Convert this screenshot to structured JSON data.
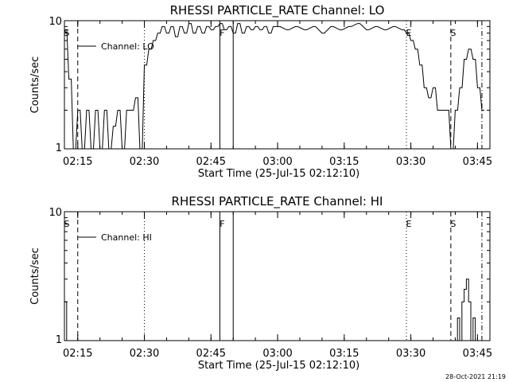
{
  "chart_data": [
    {
      "type": "line",
      "title": "RHESSI PARTICLE_RATE Channel: LO",
      "xlabel": "Start Time (25-Jul-15 02:12:10)",
      "ylabel": "Counts/sec",
      "y_scale": "log",
      "ylim": [
        1,
        10
      ],
      "y_tick_labels": [
        "10",
        "1"
      ],
      "x_tick_labels": [
        "02:15",
        "02:30",
        "02:45",
        "03:00",
        "03:15",
        "03:30",
        "03:45"
      ],
      "x_range_minutes_since_0212": [
        0,
        95.8
      ],
      "legend": "Channel: LO",
      "legend_position": "top-left",
      "grid": false,
      "markers": [
        {
          "label": "S",
          "time": "02:12",
          "style": "none"
        },
        {
          "label": "F",
          "time": "02:47",
          "style": "solid"
        },
        {
          "label": "E",
          "time": "03:29",
          "style": "dotted"
        },
        {
          "label": "S",
          "time": "03:39",
          "style": "dashed"
        }
      ],
      "vlines": [
        {
          "time": "02:15",
          "style": "dashed"
        },
        {
          "time": "02:30",
          "style": "dotted"
        },
        {
          "time": "02:47",
          "style": "solid"
        },
        {
          "time": "02:50",
          "style": "solid"
        },
        {
          "time": "03:29",
          "style": "dotted"
        },
        {
          "time": "03:39",
          "style": "dashed"
        },
        {
          "time": "03:46",
          "style": "dashdot"
        }
      ],
      "series": [
        {
          "x": [
            "02:12",
            "02:13",
            "02:14",
            "02:15",
            "02:16",
            "02:17",
            "02:18",
            "02:19",
            "02:20",
            "02:21",
            "02:22",
            "02:23",
            "02:24",
            "02:25",
            "02:26",
            "02:27",
            "02:28",
            "02:29",
            "02:30",
            "02:31",
            "02:32",
            "02:33",
            "02:34",
            "02:35",
            "02:36",
            "02:37",
            "02:38",
            "02:39",
            "02:40",
            "02:41",
            "02:42",
            "02:43",
            "02:44",
            "02:45",
            "02:46",
            "02:47",
            "02:48",
            "02:49",
            "02:50",
            "02:51",
            "02:52",
            "02:53",
            "02:54",
            "02:55",
            "02:56",
            "02:57",
            "02:58",
            "02:59",
            "03:00",
            "03:02",
            "03:04",
            "03:06",
            "03:08",
            "03:10",
            "03:12",
            "03:14",
            "03:16",
            "03:18",
            "03:20",
            "03:22",
            "03:24",
            "03:26",
            "03:28",
            "03:29",
            "03:30",
            "03:31",
            "03:32",
            "03:33",
            "03:34",
            "03:35",
            "03:36",
            "03:37",
            "03:38",
            "03:39",
            "03:40",
            "03:41",
            "03:42",
            "03:43",
            "03:44",
            "03:45",
            "03:46"
          ],
          "y": [
            8.5,
            3.5,
            1,
            2,
            1,
            2,
            1,
            2,
            1,
            2,
            1,
            1.5,
            2,
            1,
            2,
            2,
            2.5,
            1,
            4.5,
            6,
            7,
            8,
            9,
            8,
            9,
            7.5,
            9,
            8,
            9.5,
            8,
            9,
            8,
            9,
            8.5,
            9,
            9.5,
            8.5,
            9,
            8,
            9.5,
            8,
            9,
            8.5,
            9,
            8.5,
            9,
            8,
            9,
            9,
            8.5,
            9,
            8.5,
            9,
            8,
            9,
            8.5,
            9,
            9.5,
            8.5,
            9,
            8.5,
            9,
            8.5,
            8,
            7,
            6,
            4.5,
            3,
            2.5,
            3,
            2,
            2,
            2,
            1,
            2,
            3,
            5,
            6,
            5,
            3,
            2
          ]
        }
      ]
    },
    {
      "type": "line",
      "title": "RHESSI PARTICLE_RATE Channel: HI",
      "xlabel": "Start Time (25-Jul-15 02:12:10)",
      "ylabel": "Counts/sec",
      "y_scale": "log",
      "ylim": [
        1,
        10
      ],
      "y_tick_labels": [
        "10",
        "1"
      ],
      "x_tick_labels": [
        "02:15",
        "02:30",
        "02:45",
        "03:00",
        "03:15",
        "03:30",
        "03:45"
      ],
      "x_range_minutes_since_0212": [
        0,
        95.8
      ],
      "legend": "Channel: HI",
      "legend_position": "top-left",
      "grid": false,
      "markers": [
        {
          "label": "S",
          "time": "02:12",
          "style": "none"
        },
        {
          "label": "F",
          "time": "02:47",
          "style": "solid"
        },
        {
          "label": "E",
          "time": "03:29",
          "style": "dotted"
        },
        {
          "label": "S",
          "time": "03:39",
          "style": "dashed"
        }
      ],
      "vlines": [
        {
          "time": "02:15",
          "style": "dashed"
        },
        {
          "time": "02:30",
          "style": "dotted"
        },
        {
          "time": "02:47",
          "style": "solid"
        },
        {
          "time": "02:50",
          "style": "solid"
        },
        {
          "time": "03:29",
          "style": "dotted"
        },
        {
          "time": "03:39",
          "style": "dashed"
        },
        {
          "time": "03:46",
          "style": "dashdot"
        }
      ],
      "series": [
        {
          "x": [
            "02:12",
            "02:12.5",
            "02:13",
            "03:40",
            "03:40.5",
            "03:41",
            "03:41.5",
            "03:42",
            "03:42.5",
            "03:43",
            "03:43.5",
            "03:44",
            "03:44.5",
            "03:45"
          ],
          "y": [
            2,
            1,
            1,
            1,
            1.5,
            1,
            2,
            2.5,
            3,
            2,
            1,
            1.5,
            1,
            1
          ]
        }
      ]
    }
  ],
  "footer": {
    "timestamp": "28-Oct-2021 21:19"
  }
}
